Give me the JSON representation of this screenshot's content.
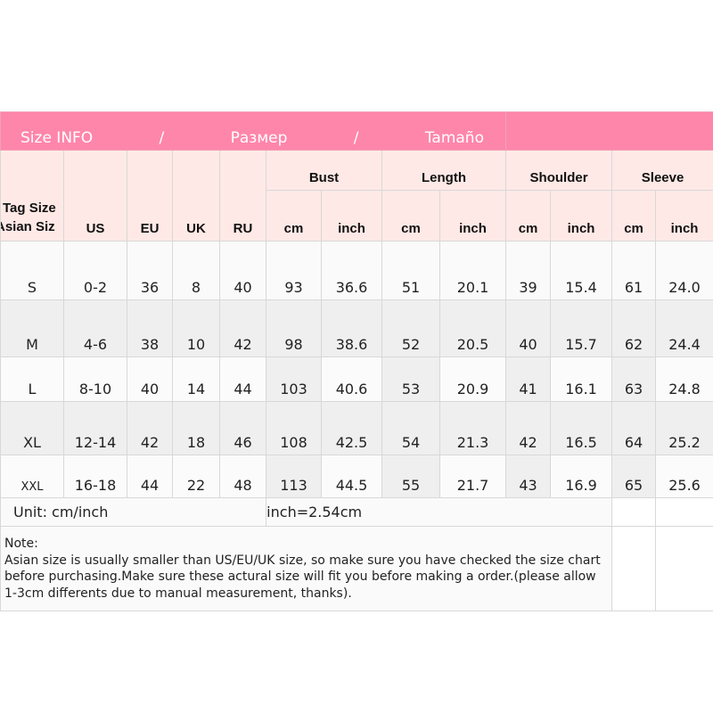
{
  "title": {
    "part1": "Size INFO",
    "sep1": "/",
    "part2": "Размер",
    "sep2": "/",
    "part3": "Tamaño"
  },
  "headers": {
    "tag_line1": "Tag Size",
    "tag_line2": "Asian Siz",
    "us": "US",
    "eu": "EU",
    "uk": "UK",
    "ru": "RU",
    "groups": [
      "Bust",
      "Length",
      "Shoulder",
      "Sleeve"
    ],
    "cm": "cm",
    "inch": "inch"
  },
  "rows": [
    {
      "size": "S",
      "us": "0-2",
      "eu": "36",
      "uk": "8",
      "ru": "40",
      "bust_cm": "93",
      "bust_in": "36.6",
      "len_cm": "51",
      "len_in": "20.1",
      "sh_cm": "39",
      "sh_in": "15.4",
      "sl_cm": "61",
      "sl_in": "24.0"
    },
    {
      "size": "M",
      "us": "4-6",
      "eu": "38",
      "uk": "10",
      "ru": "42",
      "bust_cm": "98",
      "bust_in": "38.6",
      "len_cm": "52",
      "len_in": "20.5",
      "sh_cm": "40",
      "sh_in": "15.7",
      "sl_cm": "62",
      "sl_in": "24.4"
    },
    {
      "size": "L",
      "us": "8-10",
      "eu": "40",
      "uk": "14",
      "ru": "44",
      "bust_cm": "103",
      "bust_in": "40.6",
      "len_cm": "53",
      "len_in": "20.9",
      "sh_cm": "41",
      "sh_in": "16.1",
      "sl_cm": "63",
      "sl_in": "24.8"
    },
    {
      "size": "XL",
      "us": "12-14",
      "eu": "42",
      "uk": "18",
      "ru": "46",
      "bust_cm": "108",
      "bust_in": "42.5",
      "len_cm": "54",
      "len_in": "21.3",
      "sh_cm": "42",
      "sh_in": "16.5",
      "sl_cm": "64",
      "sl_in": "25.2"
    },
    {
      "size": "XXL",
      "us": "16-18",
      "eu": "44",
      "uk": "22",
      "ru": "48",
      "bust_cm": "113",
      "bust_in": "44.5",
      "len_cm": "55",
      "len_in": "21.7",
      "sh_cm": "43",
      "sh_in": "16.9",
      "sl_cm": "65",
      "sl_in": "25.6"
    }
  ],
  "unit": {
    "label": "Unit: cm/inch",
    "conversion": "1inch=2.54cm"
  },
  "note": {
    "heading": "Note:",
    "text": "Asian size is usually smaller than US/EU/UK size, so make sure you have checked the size chart before purchasing.Make sure these actural size will fit you before making a order.(please allow 1-3cm differents due to manual measurement, thanks)."
  },
  "colors": {
    "title_bg": "#ff86ab",
    "header_bg": "#ffe9e6",
    "row_alt": "#efefef"
  }
}
